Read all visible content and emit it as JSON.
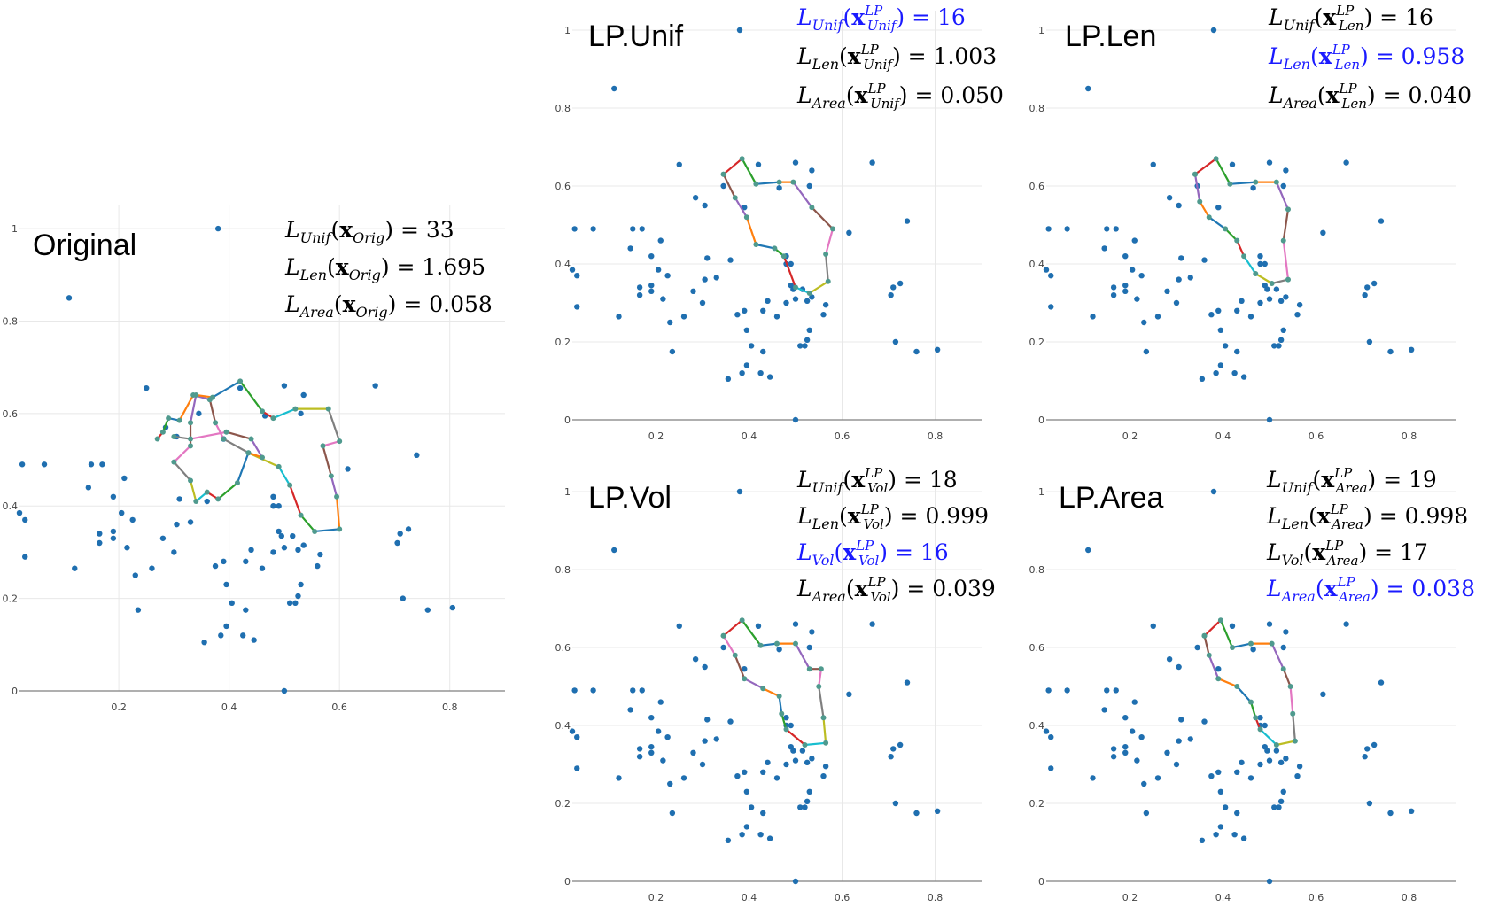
{
  "panels": [
    {
      "title": "Original",
      "annotations": [
        {
          "text": "L_Unif(x_Orig) = 33",
          "highlight": false
        },
        {
          "text": "L_Len(x_Orig) = 1.695",
          "highlight": false
        },
        {
          "text": "L_Area(x_Orig) = 0.058",
          "highlight": false
        }
      ],
      "tour": [
        [
          0.27,
          0.545
        ],
        [
          0.28,
          0.56
        ],
        [
          0.29,
          0.59
        ],
        [
          0.31,
          0.585
        ],
        [
          0.335,
          0.64
        ],
        [
          0.365,
          0.63
        ],
        [
          0.375,
          0.58
        ],
        [
          0.39,
          0.545
        ],
        [
          0.435,
          0.515
        ],
        [
          0.49,
          0.485
        ],
        [
          0.51,
          0.445
        ],
        [
          0.53,
          0.38
        ],
        [
          0.555,
          0.345
        ],
        [
          0.6,
          0.35
        ],
        [
          0.595,
          0.42
        ],
        [
          0.585,
          0.465
        ],
        [
          0.57,
          0.53
        ],
        [
          0.6,
          0.54
        ],
        [
          0.58,
          0.61
        ],
        [
          0.52,
          0.61
        ],
        [
          0.48,
          0.59
        ],
        [
          0.46,
          0.605
        ],
        [
          0.42,
          0.67
        ],
        [
          0.37,
          0.635
        ],
        [
          0.34,
          0.64
        ],
        [
          0.33,
          0.58
        ],
        [
          0.33,
          0.53
        ],
        [
          0.3,
          0.495
        ],
        [
          0.33,
          0.455
        ],
        [
          0.34,
          0.41
        ],
        [
          0.36,
          0.43
        ],
        [
          0.38,
          0.415
        ],
        [
          0.415,
          0.45
        ],
        [
          0.435,
          0.515
        ],
        [
          0.46,
          0.505
        ],
        [
          0.44,
          0.545
        ],
        [
          0.395,
          0.56
        ],
        [
          0.33,
          0.545
        ],
        [
          0.3,
          0.55
        ]
      ]
    },
    {
      "title": "LP.Unif",
      "annotations": [
        {
          "text": "L_Unif(x^LP_Unif) = 16",
          "highlight": true
        },
        {
          "text": "L_Len(x^LP_Unif) = 1.003",
          "highlight": false
        },
        {
          "text": "L_Area(x^LP_Unif) = 0.050",
          "highlight": false
        }
      ],
      "tour": [
        [
          0.345,
          0.63
        ],
        [
          0.385,
          0.67
        ],
        [
          0.415,
          0.605
        ],
        [
          0.465,
          0.61
        ],
        [
          0.495,
          0.61
        ],
        [
          0.535,
          0.545
        ],
        [
          0.58,
          0.49
        ],
        [
          0.565,
          0.425
        ],
        [
          0.57,
          0.355
        ],
        [
          0.53,
          0.325
        ],
        [
          0.5,
          0.34
        ],
        [
          0.475,
          0.42
        ],
        [
          0.455,
          0.44
        ],
        [
          0.415,
          0.45
        ],
        [
          0.395,
          0.52
        ],
        [
          0.37,
          0.57
        ],
        [
          0.345,
          0.63
        ]
      ]
    },
    {
      "title": "LP.Len",
      "annotations": [
        {
          "text": "L_Unif(x^LP_Len) = 16",
          "highlight": false
        },
        {
          "text": "L_Len(x^LP_Len) = 0.958",
          "highlight": true
        },
        {
          "text": "L_Area(x^LP_Len) = 0.040",
          "highlight": false
        }
      ],
      "tour": [
        [
          0.34,
          0.63
        ],
        [
          0.385,
          0.67
        ],
        [
          0.415,
          0.605
        ],
        [
          0.47,
          0.61
        ],
        [
          0.515,
          0.61
        ],
        [
          0.54,
          0.54
        ],
        [
          0.53,
          0.46
        ],
        [
          0.54,
          0.36
        ],
        [
          0.505,
          0.35
        ],
        [
          0.47,
          0.375
        ],
        [
          0.445,
          0.42
        ],
        [
          0.43,
          0.46
        ],
        [
          0.405,
          0.49
        ],
        [
          0.37,
          0.52
        ],
        [
          0.35,
          0.56
        ],
        [
          0.34,
          0.63
        ]
      ]
    },
    {
      "title": "LP.Vol",
      "annotations": [
        {
          "text": "L_Unif(x^LP_Vol) = 18",
          "highlight": false
        },
        {
          "text": "L_Len(x^LP_Vol) = 0.999",
          "highlight": false
        },
        {
          "text": "L_Vol(x^LP_Vol) = 16",
          "highlight": true
        },
        {
          "text": "L_Area(x^LP_Vol) = 0.039",
          "highlight": false
        }
      ],
      "tour": [
        [
          0.345,
          0.63
        ],
        [
          0.385,
          0.67
        ],
        [
          0.425,
          0.605
        ],
        [
          0.46,
          0.61
        ],
        [
          0.5,
          0.61
        ],
        [
          0.53,
          0.545
        ],
        [
          0.555,
          0.545
        ],
        [
          0.55,
          0.5
        ],
        [
          0.56,
          0.42
        ],
        [
          0.565,
          0.355
        ],
        [
          0.52,
          0.35
        ],
        [
          0.48,
          0.39
        ],
        [
          0.47,
          0.43
        ],
        [
          0.465,
          0.475
        ],
        [
          0.43,
          0.495
        ],
        [
          0.39,
          0.52
        ],
        [
          0.37,
          0.58
        ],
        [
          0.345,
          0.63
        ]
      ]
    },
    {
      "title": "LP.Area",
      "annotations": [
        {
          "text": "L_Unif(x^LP_Area) = 19",
          "highlight": false
        },
        {
          "text": "L_Len(x^LP_Area) = 0.998",
          "highlight": false
        },
        {
          "text": "L_Vol(x^LP_Area) = 17",
          "highlight": false
        },
        {
          "text": "L_Area(x^LP_Area) = 0.038",
          "highlight": true
        }
      ],
      "tour": [
        [
          0.36,
          0.63
        ],
        [
          0.395,
          0.67
        ],
        [
          0.42,
          0.6
        ],
        [
          0.46,
          0.61
        ],
        [
          0.505,
          0.61
        ],
        [
          0.53,
          0.545
        ],
        [
          0.545,
          0.5
        ],
        [
          0.55,
          0.43
        ],
        [
          0.555,
          0.36
        ],
        [
          0.515,
          0.35
        ],
        [
          0.48,
          0.39
        ],
        [
          0.47,
          0.42
        ],
        [
          0.46,
          0.46
        ],
        [
          0.43,
          0.5
        ],
        [
          0.39,
          0.52
        ],
        [
          0.37,
          0.58
        ],
        [
          0.36,
          0.63
        ]
      ]
    }
  ],
  "chart_data": {
    "type": "scatter",
    "x_ticks": [
      "0.2",
      "0.4",
      "0.6",
      "0.8"
    ],
    "y_ticks": [
      "0",
      "0.2",
      "0.4",
      "0.6",
      "0.8",
      "1"
    ],
    "xlim": [
      0.02,
      0.9
    ],
    "ylim": [
      0,
      1.05
    ],
    "grid": true,
    "segment_colors": [
      "#d62728",
      "#2ca02c",
      "#1f77b4",
      "#ff7f0e",
      "#9467bd",
      "#8c564b",
      "#e377c2",
      "#7f7f7f",
      "#bcbd22",
      "#17becf"
    ],
    "point_color": "#1f6fb0",
    "points": [
      [
        0.38,
        1.0
      ],
      [
        0.11,
        0.85
      ],
      [
        0.025,
        0.49
      ],
      [
        0.065,
        0.49
      ],
      [
        0.15,
        0.49
      ],
      [
        0.17,
        0.49
      ],
      [
        0.145,
        0.44
      ],
      [
        0.19,
        0.42
      ],
      [
        0.205,
        0.385
      ],
      [
        0.225,
        0.37
      ],
      [
        0.21,
        0.46
      ],
      [
        0.02,
        0.385
      ],
      [
        0.03,
        0.37
      ],
      [
        0.03,
        0.29
      ],
      [
        0.12,
        0.265
      ],
      [
        0.165,
        0.34
      ],
      [
        0.165,
        0.32
      ],
      [
        0.19,
        0.345
      ],
      [
        0.19,
        0.33
      ],
      [
        0.215,
        0.31
      ],
      [
        0.23,
        0.25
      ],
      [
        0.235,
        0.175
      ],
      [
        0.26,
        0.265
      ],
      [
        0.28,
        0.33
      ],
      [
        0.3,
        0.3
      ],
      [
        0.305,
        0.36
      ],
      [
        0.31,
        0.415
      ],
      [
        0.305,
        0.55
      ],
      [
        0.285,
        0.57
      ],
      [
        0.25,
        0.655
      ],
      [
        0.33,
        0.365
      ],
      [
        0.36,
        0.41
      ],
      [
        0.375,
        0.27
      ],
      [
        0.39,
        0.28
      ],
      [
        0.395,
        0.23
      ],
      [
        0.405,
        0.19
      ],
      [
        0.395,
        0.14
      ],
      [
        0.385,
        0.12
      ],
      [
        0.355,
        0.105
      ],
      [
        0.425,
        0.12
      ],
      [
        0.43,
        0.175
      ],
      [
        0.445,
        0.11
      ],
      [
        0.43,
        0.28
      ],
      [
        0.44,
        0.305
      ],
      [
        0.46,
        0.265
      ],
      [
        0.48,
        0.3
      ],
      [
        0.49,
        0.345
      ],
      [
        0.495,
        0.335
      ],
      [
        0.5,
        0.31
      ],
      [
        0.51,
        0.19
      ],
      [
        0.52,
        0.19
      ],
      [
        0.525,
        0.205
      ],
      [
        0.53,
        0.23
      ],
      [
        0.515,
        0.335
      ],
      [
        0.525,
        0.305
      ],
      [
        0.535,
        0.315
      ],
      [
        0.565,
        0.295
      ],
      [
        0.56,
        0.27
      ],
      [
        0.535,
        0.64
      ],
      [
        0.5,
        0.66
      ],
      [
        0.48,
        0.42
      ],
      [
        0.48,
        0.4
      ],
      [
        0.49,
        0.4
      ],
      [
        0.615,
        0.48
      ],
      [
        0.665,
        0.66
      ],
      [
        0.705,
        0.32
      ],
      [
        0.71,
        0.34
      ],
      [
        0.725,
        0.35
      ],
      [
        0.74,
        0.51
      ],
      [
        0.715,
        0.2
      ],
      [
        0.76,
        0.175
      ],
      [
        0.805,
        0.18
      ],
      [
        0.5,
        0.0
      ],
      [
        0.39,
        0.545
      ],
      [
        0.42,
        0.655
      ],
      [
        0.465,
        0.595
      ],
      [
        0.53,
        0.6
      ],
      [
        0.345,
        0.6
      ]
    ]
  }
}
